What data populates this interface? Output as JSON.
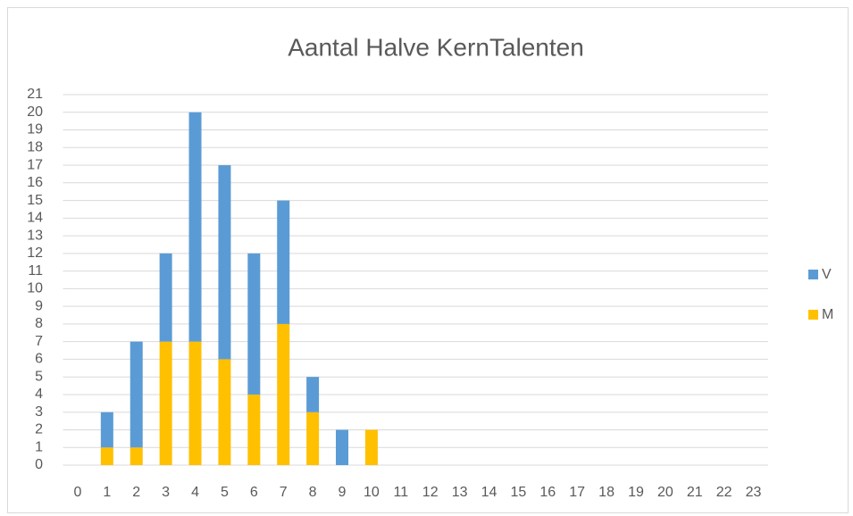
{
  "chart_data": {
    "type": "stacked_bar",
    "title": "Aantal Halve KernTalenten",
    "categories": [
      "0",
      "1",
      "2",
      "3",
      "4",
      "5",
      "6",
      "7",
      "8",
      "9",
      "10",
      "11",
      "12",
      "13",
      "14",
      "15",
      "16",
      "17",
      "18",
      "19",
      "20",
      "21",
      "22",
      "23"
    ],
    "series": [
      {
        "name": "V",
        "color": "#5b9bd5",
        "values": [
          0,
          2,
          6,
          5,
          13,
          11,
          8,
          7,
          2,
          2,
          0,
          0,
          0,
          0,
          0,
          0,
          0,
          0,
          0,
          0,
          0,
          0,
          0,
          0
        ]
      },
      {
        "name": "M",
        "color": "#ffc000",
        "values": [
          0,
          1,
          1,
          7,
          7,
          6,
          4,
          8,
          3,
          0,
          2,
          0,
          0,
          0,
          0,
          0,
          0,
          0,
          0,
          0,
          0,
          0,
          0,
          0
        ]
      }
    ],
    "ylim": [
      0,
      21
    ],
    "yticks": [
      0,
      1,
      2,
      3,
      4,
      5,
      6,
      7,
      8,
      9,
      10,
      11,
      12,
      13,
      14,
      15,
      16,
      17,
      18,
      19,
      20,
      21
    ],
    "grid": true,
    "legend": "right"
  }
}
